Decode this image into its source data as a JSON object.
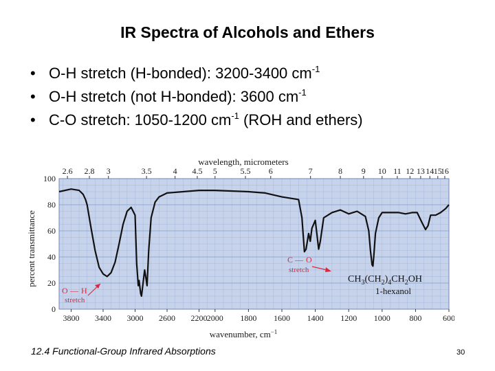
{
  "slide": {
    "title": "IR Spectra of Alcohols and Ethers",
    "bullets": [
      {
        "text": "O-H stretch (H-bonded): 3200-3400 cm",
        "sup": "-1",
        "tail": ""
      },
      {
        "text": "O-H stretch (not H-bonded): 3600 cm",
        "sup": "-1",
        "tail": ""
      },
      {
        "text": "C-O stretch: 1050-1200 cm",
        "sup": "-1",
        "tail": " (ROH and ethers)"
      }
    ],
    "bullet_symbol": "•",
    "footer": "12.4 Functional-Group Infrared Absorptions",
    "page_number": "30"
  },
  "colors": {
    "plot_bg": "#c7d3eb",
    "grid": "#8ea7d2",
    "trace": "#111111",
    "annotation": "#d9283f",
    "text": "#1a1a1a"
  },
  "chart_data": {
    "type": "line",
    "xlabel_bottom": "wavenumber, cm",
    "xlabel_bottom_sup": "−1",
    "xlabel_top": "wavelength, micrometers",
    "ylabel": "percent transmittance",
    "x_range": [
      3950,
      600
    ],
    "y_range": [
      0,
      100
    ],
    "bottom_ticks": [
      3800,
      3400,
      3000,
      2600,
      2200,
      2000,
      1800,
      1600,
      1400,
      1200,
      1000,
      800,
      600
    ],
    "top_ticks": [
      "2.6",
      "2.8",
      "3",
      "3.5",
      "4",
      "4.5",
      "5",
      "5.5",
      "6",
      "7",
      "8",
      "9",
      "10",
      "11",
      "12",
      "13",
      "14",
      "15",
      "16"
    ],
    "y_ticks": [
      0,
      20,
      40,
      60,
      80,
      100
    ],
    "series": [
      {
        "points": [
          [
            3950,
            90
          ],
          [
            3800,
            92
          ],
          [
            3700,
            91
          ],
          [
            3650,
            88
          ],
          [
            3620,
            84
          ],
          [
            3600,
            80
          ],
          [
            3550,
            62
          ],
          [
            3500,
            45
          ],
          [
            3450,
            32
          ],
          [
            3400,
            27
          ],
          [
            3350,
            25
          ],
          [
            3300,
            28
          ],
          [
            3250,
            36
          ],
          [
            3200,
            50
          ],
          [
            3150,
            65
          ],
          [
            3100,
            75
          ],
          [
            3050,
            78
          ],
          [
            3000,
            72
          ],
          [
            2980,
            35
          ],
          [
            2960,
            18
          ],
          [
            2950,
            22
          ],
          [
            2930,
            12
          ],
          [
            2920,
            10
          ],
          [
            2900,
            20
          ],
          [
            2880,
            30
          ],
          [
            2860,
            22
          ],
          [
            2850,
            18
          ],
          [
            2830,
            45
          ],
          [
            2800,
            70
          ],
          [
            2750,
            82
          ],
          [
            2700,
            86
          ],
          [
            2600,
            89
          ],
          [
            2400,
            90
          ],
          [
            2200,
            91
          ],
          [
            2000,
            91
          ],
          [
            1800,
            90
          ],
          [
            1700,
            89
          ],
          [
            1600,
            86
          ],
          [
            1500,
            84
          ],
          [
            1480,
            70
          ],
          [
            1465,
            44
          ],
          [
            1455,
            46
          ],
          [
            1440,
            58
          ],
          [
            1430,
            52
          ],
          [
            1420,
            62
          ],
          [
            1400,
            68
          ],
          [
            1380,
            46
          ],
          [
            1370,
            52
          ],
          [
            1350,
            70
          ],
          [
            1300,
            74
          ],
          [
            1250,
            76
          ],
          [
            1200,
            73
          ],
          [
            1150,
            75
          ],
          [
            1100,
            71
          ],
          [
            1080,
            60
          ],
          [
            1070,
            45
          ],
          [
            1060,
            34
          ],
          [
            1055,
            33
          ],
          [
            1050,
            40
          ],
          [
            1040,
            58
          ],
          [
            1020,
            70
          ],
          [
            1000,
            74
          ],
          [
            960,
            74
          ],
          [
            900,
            74
          ],
          [
            860,
            73
          ],
          [
            820,
            74
          ],
          [
            790,
            74
          ],
          [
            760,
            66
          ],
          [
            740,
            61
          ],
          [
            725,
            64
          ],
          [
            710,
            72
          ],
          [
            680,
            72
          ],
          [
            650,
            74
          ],
          [
            620,
            77
          ],
          [
            600,
            80
          ]
        ]
      }
    ],
    "annotations": {
      "oh_top": "O",
      "oh_bond": "—",
      "oh_right": "H",
      "oh_label": "stretch",
      "co_top": "C",
      "co_bond": "—",
      "co_right": "O",
      "co_label": "stretch",
      "compound_formula": "CH3(CH2)4CH2OH",
      "compound_name": "1-hexanol"
    }
  }
}
